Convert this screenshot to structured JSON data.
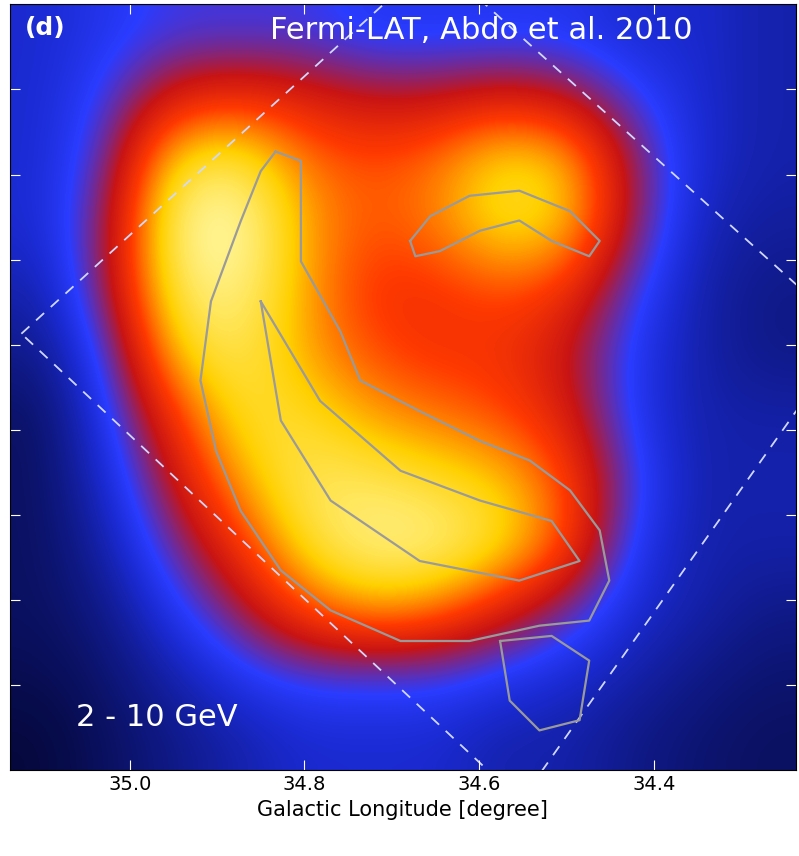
{
  "chart_data": {
    "type": "heatmap",
    "panel_label": "(d)",
    "annotations": [
      "Fermi-LAT, Abdo et al. 2010",
      "2 - 10 GeV"
    ],
    "xlabel": "Galactic Longitude [degree]",
    "xlim": [
      35.1375,
      34.2375
    ],
    "xticks": [
      35.0,
      34.8,
      34.6,
      34.4
    ],
    "ylim": [
      -0.9,
      0.0
    ],
    "yticks": [
      -0.8,
      -0.7,
      -0.6,
      -0.5,
      -0.4,
      -0.3,
      -0.2,
      -0.1
    ],
    "tick_labels": "x",
    "x": [
      35.1,
      35.025,
      34.95,
      34.875,
      34.8,
      34.725,
      34.65,
      34.575,
      34.5,
      34.425,
      34.35,
      34.275
    ],
    "y": [
      -0.0375,
      -0.1125,
      -0.1875,
      -0.2625,
      -0.3375,
      -0.4125,
      -0.4875,
      -0.5625,
      -0.6375,
      -0.7125,
      -0.7875,
      -0.8625
    ],
    "cells": [
      [
        0.25,
        0.3,
        0.35,
        0.35,
        0.35,
        0.3,
        0.3,
        0.3,
        0.3,
        0.25,
        0.25,
        0.2
      ],
      [
        0.25,
        0.35,
        0.55,
        0.6,
        0.55,
        0.5,
        0.5,
        0.55,
        0.5,
        0.35,
        0.25,
        0.2
      ],
      [
        0.25,
        0.4,
        0.85,
        0.9,
        0.7,
        0.65,
        0.7,
        0.85,
        0.8,
        0.45,
        0.25,
        0.2
      ],
      [
        0.25,
        0.45,
        0.95,
        1.0,
        0.75,
        0.65,
        0.7,
        0.85,
        0.8,
        0.45,
        0.22,
        0.18
      ],
      [
        0.2,
        0.45,
        0.9,
        0.95,
        0.75,
        0.6,
        0.6,
        0.65,
        0.6,
        0.35,
        0.2,
        0.15
      ],
      [
        0.15,
        0.35,
        0.8,
        0.9,
        0.75,
        0.65,
        0.6,
        0.6,
        0.5,
        0.3,
        0.2,
        0.15
      ],
      [
        0.1,
        0.3,
        0.6,
        0.85,
        0.85,
        0.75,
        0.7,
        0.65,
        0.55,
        0.3,
        0.2,
        0.2
      ],
      [
        0.1,
        0.25,
        0.5,
        0.75,
        0.9,
        0.9,
        0.85,
        0.8,
        0.65,
        0.35,
        0.2,
        0.2
      ],
      [
        0.1,
        0.2,
        0.4,
        0.6,
        0.85,
        0.95,
        0.95,
        0.85,
        0.65,
        0.3,
        0.2,
        0.2
      ],
      [
        0.1,
        0.15,
        0.3,
        0.45,
        0.65,
        0.75,
        0.7,
        0.55,
        0.4,
        0.25,
        0.2,
        0.15
      ],
      [
        0.08,
        0.12,
        0.2,
        0.3,
        0.35,
        0.35,
        0.35,
        0.3,
        0.25,
        0.2,
        0.15,
        0.12
      ],
      [
        0.05,
        0.1,
        0.15,
        0.2,
        0.25,
        0.25,
        0.25,
        0.2,
        0.2,
        0.15,
        0.12,
        0.1
      ]
    ],
    "contour_lines": [
      {
        "x": [
          34.833,
          34.804,
          34.804,
          34.759,
          34.736,
          34.668,
          34.599,
          34.542,
          34.496,
          34.462,
          34.451,
          34.474,
          34.531,
          34.611,
          34.69,
          34.77,
          34.827,
          34.873,
          34.901,
          34.919,
          34.907,
          34.873,
          34.85,
          34.833
        ],
        "y": [
          -0.173,
          -0.184,
          -0.302,
          -0.384,
          -0.442,
          -0.478,
          -0.513,
          -0.536,
          -0.571,
          -0.618,
          -0.677,
          -0.724,
          -0.73,
          -0.748,
          -0.748,
          -0.712,
          -0.665,
          -0.595,
          -0.525,
          -0.442,
          -0.349,
          -0.255,
          -0.196,
          -0.173
        ]
      },
      {
        "x": [
          34.679,
          34.656,
          34.611,
          34.554,
          34.496,
          34.462,
          34.474,
          34.517,
          34.554,
          34.599,
          34.645,
          34.673,
          34.679
        ],
        "y": [
          -0.278,
          -0.249,
          -0.225,
          -0.219,
          -0.243,
          -0.278,
          -0.296,
          -0.278,
          -0.254,
          -0.266,
          -0.29,
          -0.296,
          -0.278
        ]
      },
      {
        "x": [
          34.85,
          34.827,
          34.77,
          34.668,
          34.554,
          34.485,
          34.517,
          34.599,
          34.69,
          34.782,
          34.85
        ],
        "y": [
          -0.349,
          -0.489,
          -0.583,
          -0.654,
          -0.677,
          -0.654,
          -0.607,
          -0.583,
          -0.548,
          -0.466,
          -0.349
        ]
      },
      {
        "x": [
          34.576,
          34.517,
          34.474,
          34.485,
          34.531,
          34.565,
          34.576
        ],
        "y": [
          -0.748,
          -0.742,
          -0.771,
          -0.841,
          -0.853,
          -0.818,
          -0.748
        ]
      }
    ]
  }
}
